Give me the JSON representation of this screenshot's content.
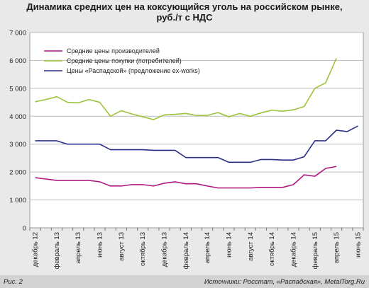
{
  "title_line1": "Динамика средних цен на коксующийся уголь на российском рынке,",
  "title_line2": "руб./т с НДС",
  "figure_label": "Рис. 2",
  "source": "Источники: Росстат, «Распадская», MetalTorg.Ru",
  "colors": {
    "producers": "#b0177e",
    "consumers": "#9dc33b",
    "raspadskaya": "#2a2f86",
    "grid": "#bdbdbd",
    "plot_bg": "#ffffff",
    "outer_bg": "#e9e9e9"
  },
  "chart_data": {
    "type": "line",
    "title": "Динамика средних цен на коксующийся уголь на российском рынке, руб./т с НДС",
    "ylim": [
      0,
      7000
    ],
    "yticks": [
      0,
      1000,
      2000,
      3000,
      4000,
      5000,
      6000,
      7000
    ],
    "ytick_labels": [
      "0",
      "1 000",
      "2 000",
      "3 000",
      "4 000",
      "5 000",
      "6 000",
      "7 000"
    ],
    "x": [
      "2012-12",
      "2013-01",
      "2013-02",
      "2013-03",
      "2013-04",
      "2013-05",
      "2013-06",
      "2013-07",
      "2013-08",
      "2013-09",
      "2013-10",
      "2013-11",
      "2013-12",
      "2014-01",
      "2014-02",
      "2014-03",
      "2014-04",
      "2014-05",
      "2014-06",
      "2014-07",
      "2014-08",
      "2014-09",
      "2014-10",
      "2014-11",
      "2014-12",
      "2015-01",
      "2015-02",
      "2015-03",
      "2015-04",
      "2015-05",
      "2015-06"
    ],
    "xtick_labels": [
      "декабрь 12",
      "февраль 13",
      "апрель 13",
      "июнь 13",
      "август 13",
      "октябрь 13",
      "декабрь 13",
      "февраль 14",
      "апрель 14",
      "июнь 14",
      "август 14",
      "октябрь 14",
      "декабрь 14",
      "февраль 15",
      "апрель 15",
      "июнь 15"
    ],
    "legend_position": "top-left",
    "grid": true,
    "series": [
      {
        "name": "Средние цены производителей",
        "color": "#b0177e",
        "values": [
          1800,
          1750,
          1700,
          1700,
          1700,
          1700,
          1650,
          1500,
          1500,
          1550,
          1550,
          1500,
          1600,
          1650,
          1580,
          1580,
          1500,
          1430,
          1430,
          1430,
          1430,
          1450,
          1450,
          1450,
          1550,
          1900,
          1850,
          2130,
          2200,
          null,
          null
        ]
      },
      {
        "name": "Средние цены покупки (потребителей)",
        "color": "#9dc33b",
        "values": [
          4520,
          4600,
          4700,
          4500,
          4480,
          4600,
          4500,
          4000,
          4200,
          4080,
          3980,
          3880,
          4050,
          4070,
          4100,
          4030,
          4030,
          4130,
          3980,
          4100,
          4000,
          4120,
          4220,
          4180,
          4230,
          4350,
          5000,
          5200,
          6080,
          null,
          null
        ]
      },
      {
        "name": "Цены «Распадской» (предложение ex-works)",
        "color": "#2a2f86",
        "values": [
          3120,
          3120,
          3120,
          3000,
          3000,
          3000,
          3000,
          2800,
          2800,
          2800,
          2800,
          2780,
          2780,
          2780,
          2520,
          2520,
          2520,
          2520,
          2350,
          2350,
          2350,
          2450,
          2450,
          2430,
          2430,
          2550,
          3120,
          3120,
          3500,
          3450,
          3650
        ]
      }
    ]
  }
}
